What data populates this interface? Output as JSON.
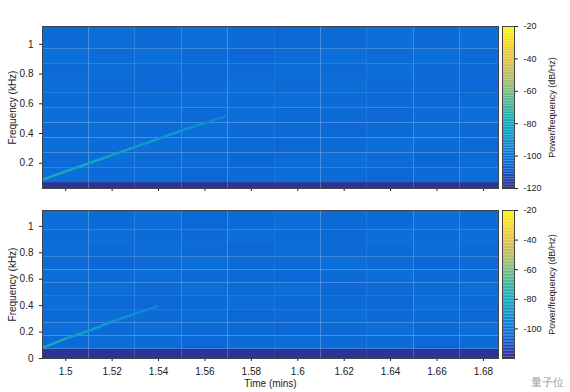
{
  "chart_data": [
    {
      "type": "heatmap",
      "ylabel": "Frequency (kHz)",
      "xlim": [
        1.49,
        1.6865
      ],
      "xticks": [
        1.5,
        1.52,
        1.54,
        1.56,
        1.58,
        1.6,
        1.62,
        1.64,
        1.66,
        1.68
      ],
      "ylim": [
        0.03,
        1.12
      ],
      "yticks": [
        0.2,
        0.4,
        0.6,
        0.8,
        1
      ],
      "tick_labels": "y",
      "time_edges": [
        1.49,
        1.51,
        1.53,
        1.55,
        1.57,
        1.59,
        1.61,
        1.63,
        1.65,
        1.67,
        1.6865
      ],
      "frequency_edges": [
        0,
        0.07,
        0.17,
        0.27,
        0.37,
        0.47,
        0.57,
        0.67,
        0.77,
        0.87,
        0.97,
        1.12
      ],
      "cells": [
        [
          -118,
          -118,
          -118,
          -118,
          -118,
          -118,
          -118,
          -118,
          -118,
          -118
        ],
        [
          -103,
          -104,
          -103,
          -105,
          -104,
          -103,
          -104,
          -105,
          -104,
          -103
        ],
        [
          -104,
          -103,
          -104,
          -104,
          -105,
          -104,
          -103,
          -104,
          -105,
          -104
        ],
        [
          -103,
          -104,
          -103,
          -104,
          -104,
          -105,
          -104,
          -103,
          -104,
          -105
        ],
        [
          -104,
          -103,
          -104,
          -103,
          -104,
          -104,
          -105,
          -104,
          -103,
          -104
        ],
        [
          -103,
          -104,
          -103,
          -104,
          -103,
          -104,
          -104,
          -105,
          -104,
          -103
        ],
        [
          -104,
          -105,
          -104,
          -103,
          -104,
          -103,
          -104,
          -104,
          -105,
          -104
        ],
        [
          -103,
          -104,
          -105,
          -104,
          -103,
          -104,
          -103,
          -104,
          -104,
          -105
        ],
        [
          -104,
          -103,
          -104,
          -105,
          -104,
          -103,
          -104,
          -103,
          -104,
          -104
        ],
        [
          -103,
          -104,
          -103,
          -104,
          -105,
          -104,
          -103,
          -104,
          -103,
          -104
        ],
        [
          -104,
          -103,
          -104,
          -103,
          -104,
          -105,
          -104,
          -103,
          -104,
          -103
        ]
      ],
      "chirp": {
        "time": [
          1.49,
          1.5,
          1.51,
          1.52,
          1.53,
          1.54,
          1.55,
          1.56,
          1.57
        ],
        "frequency": [
          0.09,
          0.145,
          0.2,
          0.255,
          0.31,
          0.365,
          0.42,
          0.47,
          0.52
        ],
        "level": [
          -78,
          -80,
          -82,
          -84,
          -86,
          -88,
          -91,
          -94,
          -97
        ]
      },
      "colorbar": {
        "label": "Power/frequency (dB/Hz)",
        "range": [
          -120,
          -20
        ],
        "ticks": [
          -20,
          -40,
          -60,
          -80,
          -100,
          -120
        ]
      }
    },
    {
      "type": "heatmap",
      "xlabel": "Time (mins)",
      "ylabel": "Frequency (kHz)",
      "xlim": [
        1.49,
        1.6865
      ],
      "xticks": [
        1.5,
        1.52,
        1.54,
        1.56,
        1.58,
        1.6,
        1.62,
        1.64,
        1.66,
        1.68
      ],
      "ylim": [
        0,
        1.12
      ],
      "yticks": [
        0,
        0.2,
        0.4,
        0.6,
        0.8,
        1
      ],
      "time_edges": [
        1.49,
        1.51,
        1.53,
        1.55,
        1.57,
        1.59,
        1.61,
        1.63,
        1.65,
        1.67,
        1.6865
      ],
      "frequency_edges": [
        0,
        0.07,
        0.17,
        0.27,
        0.37,
        0.47,
        0.57,
        0.67,
        0.77,
        0.87,
        0.97,
        1.12
      ],
      "cells": [
        [
          -118,
          -118,
          -118,
          -118,
          -118,
          -118,
          -118,
          -118,
          -118,
          -118
        ],
        [
          -104,
          -103,
          -104,
          -105,
          -104,
          -103,
          -104,
          -104,
          -105,
          -104
        ],
        [
          -103,
          -104,
          -103,
          -104,
          -104,
          -105,
          -104,
          -103,
          -104,
          -103
        ],
        [
          -104,
          -103,
          -104,
          -103,
          -105,
          -104,
          -103,
          -104,
          -104,
          -105
        ],
        [
          -103,
          -104,
          -105,
          -104,
          -103,
          -104,
          -104,
          -105,
          -103,
          -104
        ],
        [
          -104,
          -103,
          -104,
          -103,
          -104,
          -103,
          -105,
          -104,
          -104,
          -103
        ],
        [
          -103,
          -104,
          -103,
          -104,
          -104,
          -105,
          -104,
          -103,
          -104,
          -104
        ],
        [
          -104,
          -105,
          -104,
          -103,
          -104,
          -104,
          -103,
          -104,
          -105,
          -104
        ],
        [
          -103,
          -104,
          -103,
          -104,
          -105,
          -103,
          -104,
          -104,
          -103,
          -104
        ],
        [
          -104,
          -103,
          -104,
          -104,
          -103,
          -104,
          -105,
          -103,
          -104,
          -103
        ],
        [
          -103,
          -104,
          -103,
          -105,
          -104,
          -103,
          -104,
          -104,
          -103,
          -104
        ]
      ],
      "chirp": {
        "time": [
          1.49,
          1.5,
          1.51,
          1.52,
          1.53,
          1.54
        ],
        "frequency": [
          0.08,
          0.15,
          0.21,
          0.28,
          0.34,
          0.4
        ],
        "level": [
          -80,
          -84,
          -87,
          -90,
          -93,
          -96
        ]
      },
      "colorbar": {
        "label": "Power/frequency (dB/Hz)",
        "range": [
          -120,
          -20
        ],
        "ticks": [
          -20,
          -40,
          -60,
          -80,
          -100
        ]
      },
      "annotation": "量子位"
    }
  ]
}
